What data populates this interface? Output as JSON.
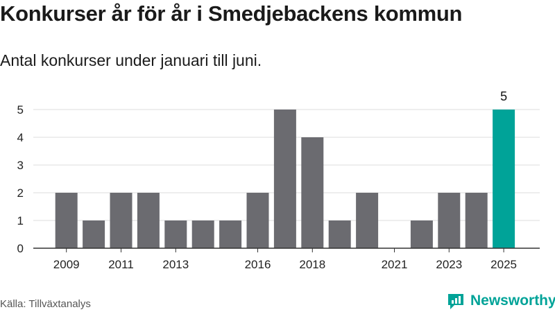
{
  "title": "Konkurser år för år i Smedjebackens kommun",
  "subtitle": "Antal konkurser under januari till juni.",
  "source": "Källa: Tillväxtanalys",
  "logo": {
    "text": "Newsworthy",
    "icon": "newsworthy-logo-icon"
  },
  "colors": {
    "bar": "#6b6b70",
    "highlight": "#00a398",
    "grid": "#dddddd",
    "axis": "#333333",
    "brand": "#00a398"
  },
  "chart_data": {
    "type": "bar",
    "title": "Konkurser år för år i Smedjebackens kommun",
    "subtitle": "Antal konkurser under januari till juni.",
    "categories": [
      "2009",
      "2010",
      "2011",
      "2012",
      "2013",
      "2014",
      "2015",
      "2016",
      "2017",
      "2018",
      "2019",
      "2020",
      "2021",
      "2022",
      "2023",
      "2024",
      "2025"
    ],
    "values": [
      2,
      1,
      2,
      2,
      1,
      1,
      1,
      2,
      5,
      4,
      1,
      2,
      0,
      1,
      2,
      2,
      5
    ],
    "x_tick_labels": [
      "2009",
      "2011",
      "2013",
      "2016",
      "2018",
      "2021",
      "2023",
      "2025"
    ],
    "yticks": [
      0,
      1,
      2,
      3,
      4,
      5
    ],
    "ylim": [
      0,
      5
    ],
    "highlight_category": "2025",
    "data_labels": [
      {
        "category": "2025",
        "text": "5"
      }
    ],
    "grid": true,
    "xlabel": "",
    "ylabel": ""
  }
}
